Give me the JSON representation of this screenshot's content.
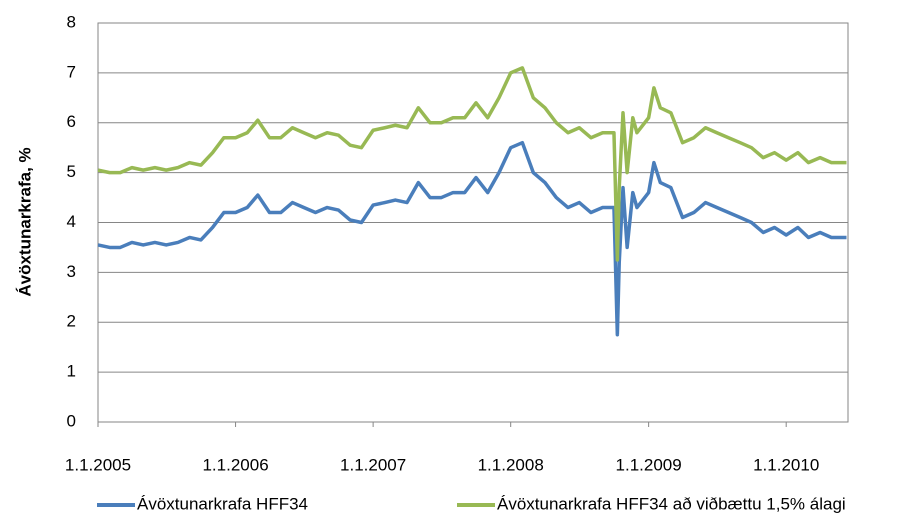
{
  "chart_data": {
    "type": "line",
    "y_label": "Ávöxtunarkrafa, %",
    "x": [
      "2005-01-01",
      "2005-02-01",
      "2005-03-01",
      "2005-04-01",
      "2005-05-01",
      "2005-06-01",
      "2005-07-01",
      "2005-08-01",
      "2005-09-01",
      "2005-10-01",
      "2005-11-01",
      "2005-12-01",
      "2006-01-01",
      "2006-02-01",
      "2006-03-01",
      "2006-04-01",
      "2006-05-01",
      "2006-06-01",
      "2006-07-01",
      "2006-08-01",
      "2006-09-01",
      "2006-10-01",
      "2006-11-01",
      "2006-12-01",
      "2007-01-01",
      "2007-02-01",
      "2007-03-01",
      "2007-04-01",
      "2007-05-01",
      "2007-06-01",
      "2007-07-01",
      "2007-08-01",
      "2007-09-01",
      "2007-10-01",
      "2007-11-01",
      "2007-12-01",
      "2008-01-01",
      "2008-02-01",
      "2008-03-01",
      "2008-04-01",
      "2008-05-01",
      "2008-06-01",
      "2008-07-01",
      "2008-08-01",
      "2008-09-01",
      "2008-10-01",
      "2008-10-10",
      "2008-10-15",
      "2008-10-25",
      "2008-11-05",
      "2008-11-20",
      "2008-12-01",
      "2009-01-01",
      "2009-01-15",
      "2009-02-01",
      "2009-03-01",
      "2009-04-01",
      "2009-05-01",
      "2009-06-01",
      "2009-07-01",
      "2009-08-01",
      "2009-09-01",
      "2009-10-01",
      "2009-11-01",
      "2009-12-01",
      "2010-01-01",
      "2010-02-01",
      "2010-03-01",
      "2010-04-01",
      "2010-05-01",
      "2010-06-10"
    ],
    "series": [
      {
        "name": "Ávöxtunarkrafa HFF34",
        "color": "#4a7ebb",
        "values": [
          3.55,
          3.5,
          3.5,
          3.6,
          3.55,
          3.6,
          3.55,
          3.6,
          3.7,
          3.65,
          3.9,
          4.2,
          4.2,
          4.3,
          4.55,
          4.2,
          4.2,
          4.4,
          4.3,
          4.2,
          4.3,
          4.25,
          4.05,
          4.0,
          4.35,
          4.4,
          4.45,
          4.4,
          4.8,
          4.5,
          4.5,
          4.6,
          4.6,
          4.9,
          4.6,
          5.0,
          5.5,
          5.6,
          5.0,
          4.8,
          4.5,
          4.3,
          4.4,
          4.2,
          4.3,
          4.3,
          1.75,
          3.2,
          4.7,
          3.5,
          4.6,
          4.3,
          4.6,
          5.2,
          4.8,
          4.7,
          4.1,
          4.2,
          4.4,
          4.3,
          4.2,
          4.1,
          4.0,
          3.8,
          3.9,
          3.75,
          3.9,
          3.7,
          3.8,
          3.7,
          3.7
        ]
      },
      {
        "name": "Ávöxtunarkrafa HFF34 að viðbættu 1,5% álagi",
        "color": "#98b954",
        "values": [
          5.05,
          5.0,
          5.0,
          5.1,
          5.05,
          5.1,
          5.05,
          5.1,
          5.2,
          5.15,
          5.4,
          5.7,
          5.7,
          5.8,
          6.05,
          5.7,
          5.7,
          5.9,
          5.8,
          5.7,
          5.8,
          5.75,
          5.55,
          5.5,
          5.85,
          5.9,
          5.95,
          5.9,
          6.3,
          6.0,
          6.0,
          6.1,
          6.1,
          6.4,
          6.1,
          6.5,
          7.0,
          7.1,
          6.5,
          6.3,
          6.0,
          5.8,
          5.9,
          5.7,
          5.8,
          5.8,
          3.25,
          4.7,
          6.2,
          5.0,
          6.1,
          5.8,
          6.1,
          6.7,
          6.3,
          6.2,
          5.6,
          5.7,
          5.9,
          5.8,
          5.7,
          5.6,
          5.5,
          5.3,
          5.4,
          5.25,
          5.4,
          5.2,
          5.3,
          5.2,
          5.2
        ]
      }
    ],
    "xlim": [
      "2005-01-01",
      "2010-06-14"
    ],
    "xticks": [
      {
        "value": "2005-01-01",
        "label": "1.1.2005"
      },
      {
        "value": "2006-01-01",
        "label": "1.1.2006"
      },
      {
        "value": "2007-01-01",
        "label": "1.1.2007"
      },
      {
        "value": "2008-01-01",
        "label": "1.1.2008"
      },
      {
        "value": "2009-01-01",
        "label": "1.1.2009"
      },
      {
        "value": "2010-01-01",
        "label": "1.1.2010"
      }
    ],
    "ylim": [
      0,
      8
    ],
    "yticks": [
      0,
      1,
      2,
      3,
      4,
      5,
      6,
      7,
      8
    ],
    "grid": true,
    "legend": "bottom"
  }
}
